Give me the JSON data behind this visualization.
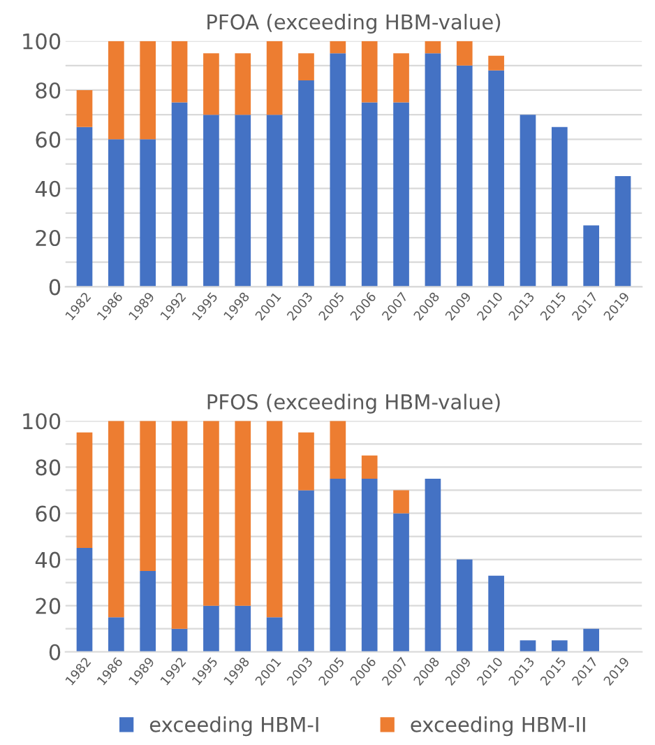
{
  "chart_data": [
    {
      "type": "bar",
      "title": "PFOA (exceeding HBM-value)",
      "stacked": true,
      "categories": [
        "1982",
        "1986",
        "1989",
        "1992",
        "1995",
        "1998",
        "2001",
        "2003",
        "2005",
        "2006",
        "2007",
        "2008",
        "2009",
        "2010",
        "2013",
        "2015",
        "2017",
        "2019"
      ],
      "series": [
        {
          "color": "#4472c4",
          "values": [
            65,
            60,
            60,
            75,
            70,
            70,
            70,
            84,
            95,
            75,
            75,
            95,
            90,
            88,
            70,
            65,
            25,
            45
          ]
        },
        {
          "color": "#ed7d31",
          "values": [
            15,
            40,
            40,
            25,
            25,
            25,
            30,
            11,
            5,
            25,
            20,
            5,
            10,
            6,
            null,
            null,
            null,
            null
          ]
        }
      ],
      "ylim": [
        0,
        100
      ],
      "yticks": [
        0,
        {
          "value": 10,
          "label": null
        },
        20,
        {
          "value": 30,
          "label": null
        },
        40,
        {
          "value": 50,
          "label": null
        },
        60,
        {
          "value": 70,
          "label": null
        },
        80,
        {
          "value": 90,
          "label": null
        },
        100
      ],
      "grid": "y",
      "legend": false
    },
    {
      "type": "bar",
      "title": "PFOS (exceeding HBM-value)",
      "stacked": true,
      "categories": [
        "1982",
        "1986",
        "1989",
        "1992",
        "1995",
        "1998",
        "2001",
        "2003",
        "2005",
        "2006",
        "2007",
        "2008",
        "2009",
        "2010",
        "2013",
        "2015",
        "2017",
        "2019"
      ],
      "series": [
        {
          "name": "exceeding HBM-I",
          "color": "#4472c4",
          "values": [
            45,
            15,
            35,
            10,
            20,
            20,
            15,
            70,
            75,
            75,
            60,
            75,
            40,
            33,
            5,
            5,
            10,
            null
          ]
        },
        {
          "name": "exceeding HBM-II",
          "color": "#ed7d31",
          "values": [
            50,
            85,
            65,
            90,
            80,
            80,
            85,
            25,
            25,
            10,
            10,
            null,
            null,
            null,
            null,
            null,
            null,
            null
          ]
        }
      ],
      "ylim": [
        0,
        100
      ],
      "yticks": [
        0,
        {
          "value": 10,
          "label": null
        },
        20,
        {
          "value": 30,
          "label": null
        },
        40,
        {
          "value": 50,
          "label": null
        },
        60,
        {
          "value": 70,
          "label": null
        },
        80,
        {
          "value": 90,
          "label": null
        },
        100
      ],
      "grid": "y",
      "legend": "bottom"
    }
  ]
}
